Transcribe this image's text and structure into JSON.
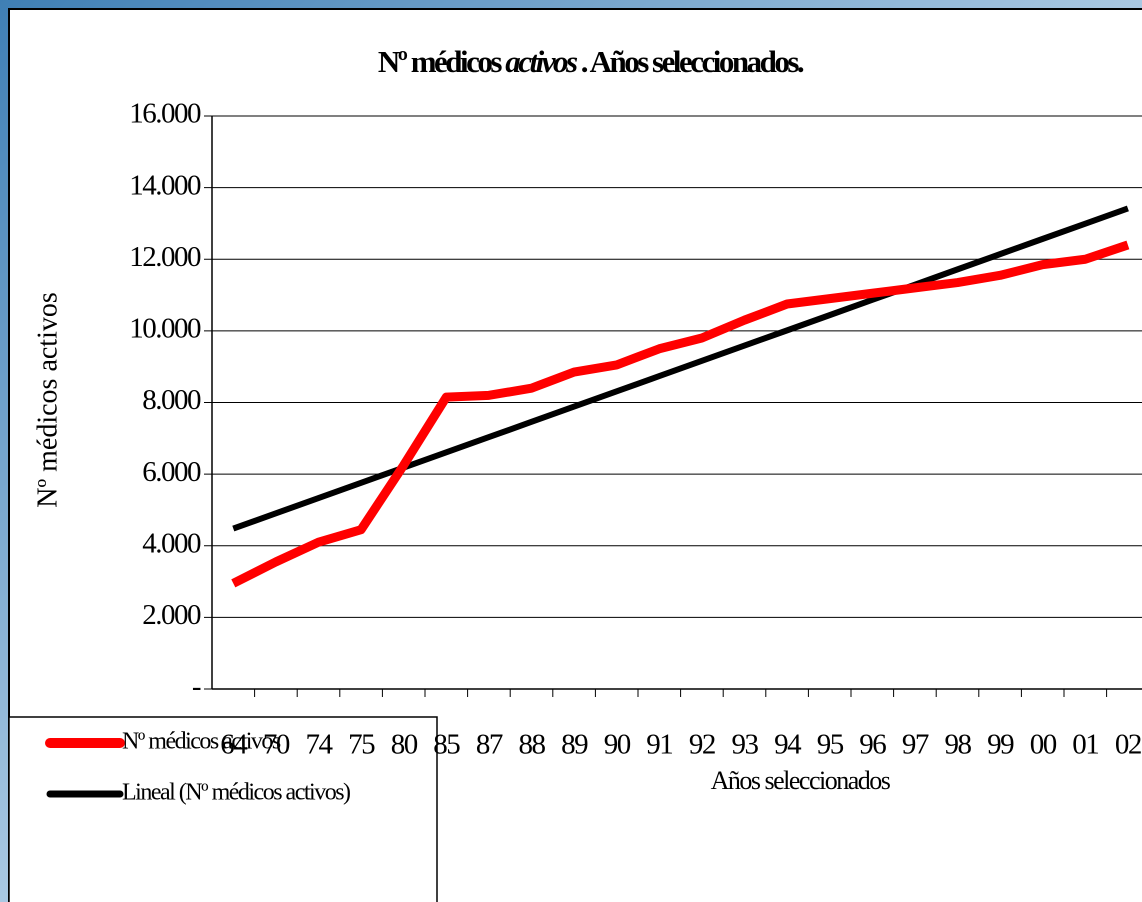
{
  "chart_data": {
    "type": "line",
    "title": [
      "Nº médicos",
      "activos",
      ". Años seleccionados."
    ],
    "y_label": "Nº médicos activos",
    "x_label": "Años seleccionados",
    "categories": [
      "64",
      "70",
      "74",
      "75",
      "80",
      "85",
      "87",
      "88",
      "89",
      "90",
      "91",
      "92",
      "93",
      "94",
      "95",
      "96",
      "97",
      "98",
      "99",
      "00",
      "01",
      "02"
    ],
    "series": [
      {
        "name": "Nº médicos activos",
        "color": "#ff0000",
        "values": [
          2950,
          3550,
          4100,
          4450,
          6250,
          8150,
          8200,
          8400,
          8850,
          9050,
          9500,
          9800,
          10300,
          10750,
          10900,
          11050,
          11200,
          11350,
          11550,
          11850,
          12000,
          12400
        ]
      },
      {
        "name": "Lineal (Nº médicos activos)",
        "color": "#000000",
        "values": [
          4480,
          4906,
          5331,
          5757,
          6183,
          6609,
          7034,
          7460,
          7886,
          8311,
          8737,
          9163,
          9589,
          10014,
          10440,
          10866,
          11291,
          11717,
          12143,
          12569,
          12994,
          13420
        ]
      }
    ],
    "ylim": [
      0,
      16000
    ],
    "yticks": [
      {
        "value": 0,
        "label": "-"
      },
      {
        "value": 2000,
        "label": "2.000"
      },
      {
        "value": 4000,
        "label": "4.000"
      },
      {
        "value": 6000,
        "label": "6.000"
      },
      {
        "value": 8000,
        "label": "8.000"
      },
      {
        "value": 10000,
        "label": "10.000"
      },
      {
        "value": 12000,
        "label": "12.000"
      },
      {
        "value": 14000,
        "label": "14.000"
      },
      {
        "value": 16000,
        "label": "16.000"
      }
    ],
    "grid": true
  }
}
